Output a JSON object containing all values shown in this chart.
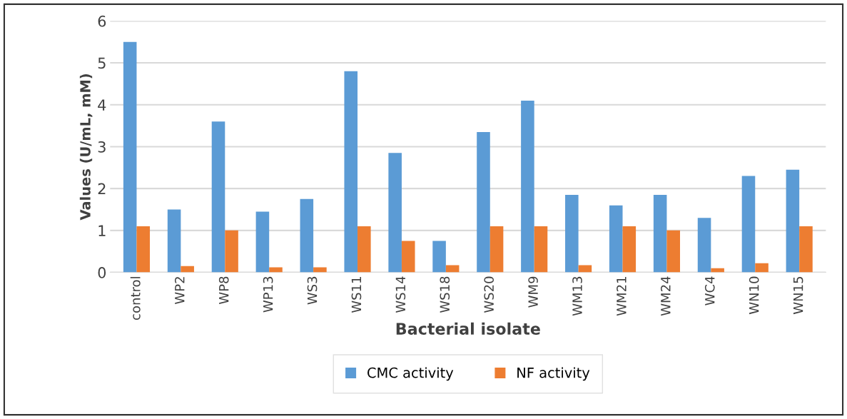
{
  "chart_data": {
    "type": "bar",
    "xlabel": "Bacterial isolate",
    "ylabel": "Values (U/mL, mM)",
    "categories": [
      "control",
      "WP2",
      "WP8",
      "WP13",
      "WS3",
      "WS11",
      "WS14",
      "WS18",
      "WS20",
      "WM9",
      "WM13",
      "WM21",
      "WM24",
      "WC4",
      "WN10",
      "WN15"
    ],
    "series": [
      {
        "name": "CMC activity",
        "color": "#5b9bd5",
        "values": [
          5.5,
          1.5,
          3.6,
          1.45,
          1.75,
          4.8,
          2.85,
          0.75,
          3.35,
          4.1,
          1.85,
          1.6,
          1.85,
          1.3,
          2.3,
          2.45
        ]
      },
      {
        "name": "NF activity",
        "color": "#ed7d31",
        "values": [
          1.1,
          0.15,
          1.0,
          0.12,
          0.12,
          1.1,
          0.75,
          0.17,
          1.1,
          1.1,
          0.17,
          1.1,
          1.0,
          0.1,
          0.22,
          1.1
        ]
      }
    ],
    "ylim": [
      0,
      6
    ],
    "yticks": [
      0,
      1,
      2,
      3,
      4,
      5,
      6
    ],
    "grid": "y",
    "legend": "bottom"
  }
}
